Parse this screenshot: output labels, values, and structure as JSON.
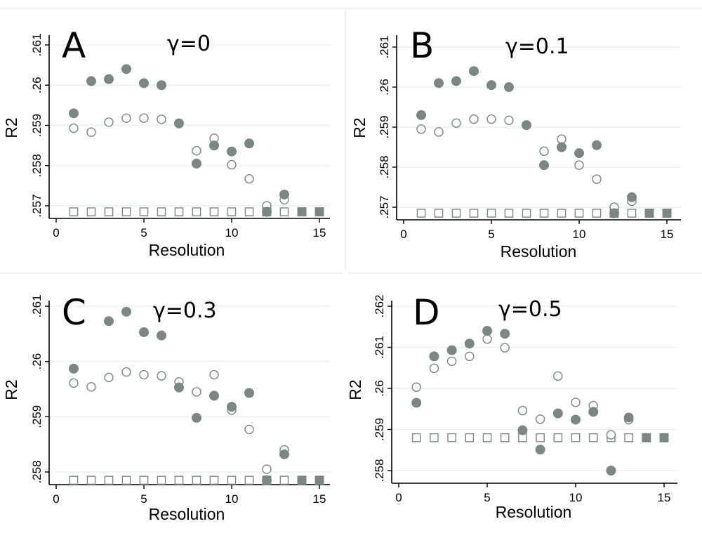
{
  "colors": {
    "marker": "#7a8785",
    "background": "#ffffff",
    "grid": "#eaf0f2",
    "axis": "#000000"
  },
  "chart_data": [
    {
      "type": "scatter",
      "panel": "A",
      "title": "γ=0",
      "xlabel": "Resolution",
      "ylabel": "R2",
      "xlim": [
        0,
        15
      ],
      "ylim": [
        0.257,
        0.261
      ],
      "xticks": [
        0,
        5,
        10,
        15
      ],
      "xtick_labels": [
        "0",
        "5",
        "10",
        "15"
      ],
      "yticks": [
        0.257,
        0.258,
        0.259,
        0.26,
        0.261
      ],
      "ytick_labels": [
        ".257",
        ".258",
        ".259",
        ".26",
        ".261"
      ],
      "series": [
        {
          "name": "filled circles",
          "marker": "circle-filled",
          "x": [
            1,
            2,
            3,
            4,
            5,
            6,
            7,
            8,
            9,
            10,
            11,
            12,
            13
          ],
          "y": [
            0.2593,
            0.2601,
            0.26015,
            0.2604,
            0.26005,
            0.26,
            0.25905,
            0.25805,
            0.2585,
            0.25835,
            0.25855,
            0.25685,
            0.25728
          ]
        },
        {
          "name": "open circles",
          "marker": "circle-open",
          "x": [
            1,
            2,
            3,
            4,
            5,
            6,
            7,
            8,
            9,
            10,
            11,
            12,
            13
          ],
          "y": [
            0.25893,
            0.25883,
            0.25908,
            0.25918,
            0.25918,
            0.25915,
            0.25905,
            0.25837,
            0.25868,
            0.25802,
            0.25767,
            0.257,
            0.25715
          ]
        },
        {
          "name": "open squares",
          "marker": "square-open",
          "x": [
            1,
            2,
            3,
            4,
            5,
            6,
            7,
            8,
            9,
            10,
            11,
            12,
            13
          ],
          "y": [
            0.25685,
            0.25685,
            0.25685,
            0.25685,
            0.25685,
            0.25685,
            0.25685,
            0.25685,
            0.25685,
            0.25685,
            0.25685,
            0.25685,
            0.25685
          ]
        },
        {
          "name": "filled squares",
          "marker": "square-filled",
          "x": [
            12,
            14,
            15
          ],
          "y": [
            0.25685,
            0.25685,
            0.25685
          ]
        }
      ]
    },
    {
      "type": "scatter",
      "panel": "B",
      "title": "γ=0.1",
      "xlabel": "Resolution",
      "ylabel": "R2",
      "xlim": [
        0,
        15
      ],
      "ylim": [
        0.257,
        0.261
      ],
      "xticks": [
        0,
        5,
        10,
        15
      ],
      "xtick_labels": [
        "0",
        "5",
        "10",
        "15"
      ],
      "yticks": [
        0.257,
        0.258,
        0.259,
        0.26,
        0.261
      ],
      "ytick_labels": [
        ".257",
        ".258",
        ".259",
        ".26",
        ".261"
      ],
      "series": [
        {
          "name": "filled circles",
          "marker": "circle-filled",
          "x": [
            1,
            2,
            3,
            4,
            5,
            6,
            7,
            8,
            9,
            10,
            11,
            12,
            13
          ],
          "y": [
            0.2593,
            0.2601,
            0.26015,
            0.2604,
            0.26005,
            0.26,
            0.25905,
            0.25805,
            0.2585,
            0.25835,
            0.25855,
            0.25685,
            0.25725
          ]
        },
        {
          "name": "open circles",
          "marker": "circle-open",
          "x": [
            1,
            2,
            3,
            4,
            5,
            6,
            7,
            8,
            9,
            10,
            11,
            12,
            13
          ],
          "y": [
            0.25895,
            0.25888,
            0.2591,
            0.2592,
            0.2592,
            0.25917,
            0.25905,
            0.2584,
            0.2587,
            0.25805,
            0.2577,
            0.257,
            0.25715
          ]
        },
        {
          "name": "open squares",
          "marker": "square-open",
          "x": [
            1,
            2,
            3,
            4,
            5,
            6,
            7,
            8,
            9,
            10,
            11,
            12,
            13
          ],
          "y": [
            0.25685,
            0.25685,
            0.25685,
            0.25685,
            0.25685,
            0.25685,
            0.25685,
            0.25685,
            0.25685,
            0.25685,
            0.25685,
            0.25685,
            0.25685
          ]
        },
        {
          "name": "filled squares",
          "marker": "square-filled",
          "x": [
            12,
            14,
            15
          ],
          "y": [
            0.25685,
            0.25685,
            0.25685
          ]
        }
      ]
    },
    {
      "type": "scatter",
      "panel": "C",
      "title": "γ=0.3",
      "xlabel": "Resolution",
      "ylabel": "R2",
      "xlim": [
        0,
        15
      ],
      "ylim": [
        0.258,
        0.261
      ],
      "xticks": [
        0,
        5,
        10,
        15
      ],
      "xtick_labels": [
        "0",
        "5",
        "10",
        "15"
      ],
      "yticks": [
        0.258,
        0.259,
        0.26,
        0.261
      ],
      "ytick_labels": [
        ".258",
        ".259",
        ".26",
        ".261"
      ],
      "series": [
        {
          "name": "filled circles",
          "marker": "circle-filled",
          "x": [
            1,
            3,
            4,
            5,
            6,
            7,
            8,
            9,
            10,
            11,
            12,
            13
          ],
          "y": [
            0.25987,
            0.26073,
            0.2609,
            0.26053,
            0.26047,
            0.25953,
            0.25898,
            0.25938,
            0.25918,
            0.25943,
            0.25785,
            0.25832
          ]
        },
        {
          "name": "open circles",
          "marker": "circle-open",
          "x": [
            1,
            2,
            3,
            4,
            5,
            6,
            7,
            8,
            9,
            10,
            11,
            12,
            13
          ],
          "y": [
            0.25961,
            0.25954,
            0.25971,
            0.25981,
            0.25976,
            0.25974,
            0.25963,
            0.25945,
            0.25976,
            0.25912,
            0.25877,
            0.25805,
            0.2584
          ]
        },
        {
          "name": "open squares",
          "marker": "square-open",
          "x": [
            1,
            2,
            3,
            4,
            5,
            6,
            7,
            8,
            9,
            10,
            11,
            12,
            13
          ],
          "y": [
            0.25785,
            0.25785,
            0.25785,
            0.25785,
            0.25785,
            0.25785,
            0.25785,
            0.25785,
            0.25785,
            0.25785,
            0.25785,
            0.25785,
            0.25785
          ]
        },
        {
          "name": "filled squares",
          "marker": "square-filled",
          "x": [
            12,
            14,
            15
          ],
          "y": [
            0.25785,
            0.25785,
            0.25785
          ]
        }
      ]
    },
    {
      "type": "scatter",
      "panel": "D",
      "title": "γ=0.5",
      "xlabel": "Resolution",
      "ylabel": "R2",
      "xlim": [
        0,
        15
      ],
      "ylim": [
        0.258,
        0.262
      ],
      "xticks": [
        0,
        5,
        10,
        15
      ],
      "xtick_labels": [
        "0",
        "5",
        "10",
        "15"
      ],
      "yticks": [
        0.258,
        0.259,
        0.26,
        0.261,
        0.262
      ],
      "ytick_labels": [
        ".258",
        ".259",
        ".26",
        ".261",
        ".262"
      ],
      "series": [
        {
          "name": "filled circles",
          "marker": "circle-filled",
          "x": [
            1,
            2,
            3,
            4,
            5,
            6,
            7,
            8,
            9,
            10,
            11,
            12,
            13
          ],
          "y": [
            0.25965,
            0.26078,
            0.26093,
            0.26109,
            0.2614,
            0.26133,
            0.25898,
            0.25851,
            0.25939,
            0.25924,
            0.25943,
            0.258,
            0.25929
          ]
        },
        {
          "name": "open circles",
          "marker": "circle-open",
          "x": [
            1,
            2,
            3,
            4,
            5,
            6,
            7,
            8,
            9,
            10,
            11,
            12,
            13
          ],
          "y": [
            0.26003,
            0.26049,
            0.26066,
            0.26078,
            0.2612,
            0.26099,
            0.25946,
            0.25925,
            0.2603,
            0.25966,
            0.25958,
            0.25887,
            0.25924
          ]
        },
        {
          "name": "open squares",
          "marker": "square-open",
          "x": [
            1,
            2,
            3,
            4,
            5,
            6,
            7,
            8,
            9,
            10,
            11,
            12,
            13
          ],
          "y": [
            0.2588,
            0.2588,
            0.2588,
            0.2588,
            0.2588,
            0.2588,
            0.2588,
            0.2588,
            0.2588,
            0.2588,
            0.2588,
            0.2588,
            0.2588
          ]
        },
        {
          "name": "filled squares",
          "marker": "square-filled",
          "x": [
            14,
            15
          ],
          "y": [
            0.2588,
            0.2588
          ]
        }
      ]
    }
  ]
}
